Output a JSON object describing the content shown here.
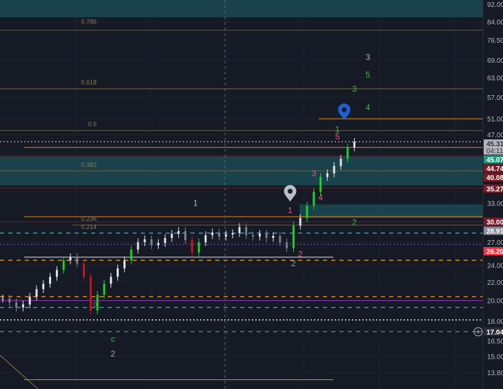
{
  "chart_data": {
    "type": "candlestick",
    "y_scale": "log",
    "grid": true,
    "ylim": [
      13.2,
      95
    ],
    "y_ticks": [
      92,
      84,
      76.5,
      69,
      63,
      57,
      51,
      47,
      33,
      27,
      24,
      22,
      20,
      18,
      16.5,
      15,
      13.8
    ],
    "y_tick_labels": [
      "92.00",
      "84.00",
      "76.50",
      "69.00",
      "63.00",
      "57.00",
      "51.00",
      "47.00",
      "33.00",
      "27.00",
      "24.00",
      "22.00",
      "20.00",
      "18.00",
      "16.50",
      "15.00",
      "13.80"
    ],
    "closes": [
      20.2,
      19.8,
      19.3,
      19.6,
      20.4,
      21.2,
      21.8,
      22.6,
      23.4,
      24.6,
      25.0,
      24.2,
      22.6,
      19.0,
      20.6,
      21.8,
      22.6,
      23.6,
      24.6,
      26.0,
      27.0,
      27.4,
      26.6,
      26.9,
      27.6,
      28.2,
      28.6,
      27.3,
      25.6,
      27.0,
      28.0,
      28.4,
      27.8,
      28.1,
      28.3,
      29.2,
      28.0,
      27.8,
      28.2,
      27.6,
      27.9,
      27.0,
      26.2,
      29.4,
      30.6,
      32.6,
      35.0,
      37.8,
      38.5,
      40.0,
      41.5,
      44.0,
      45.3
    ],
    "levels": [
      {
        "price": 80.5,
        "color": "#5d5a4e",
        "style": "solid"
      },
      {
        "price": 59.5,
        "color": "#7a6a3a",
        "style": "solid"
      },
      {
        "price": 48.0,
        "color": "#6a5d40",
        "style": "solid"
      },
      {
        "price": 51.0,
        "color": "#e08a1e",
        "style": "solid",
        "from": 0.66
      },
      {
        "price": 45.31,
        "color": "#9aa0aa",
        "style": "dotted"
      },
      {
        "price": 44.0,
        "color": "#e08a1e",
        "style": "solid",
        "from": 0.05
      },
      {
        "price": 39.0,
        "color": "#6a5d40",
        "style": "solid"
      },
      {
        "price": 42.1,
        "color": "#6b1c24",
        "style": "solid"
      },
      {
        "price": 35.7,
        "color": "#6b1c24",
        "style": "solid"
      },
      {
        "price": 30.8,
        "color": "#e08a1e",
        "style": "solid",
        "from": 0.05
      },
      {
        "price": 30.0,
        "color": "#6b1c24",
        "style": "solid"
      },
      {
        "price": 29.5,
        "color": "#6a5d40",
        "style": "solid",
        "from": 0.15
      },
      {
        "price": 28.3,
        "color": "#27a3b8",
        "style": "dashed"
      },
      {
        "price": 26.7,
        "color": "#6a3fa0",
        "style": "dotted"
      },
      {
        "price": 25.0,
        "color": "#e6e6e6",
        "style": "solid",
        "from": 0.05,
        "to": 0.69
      },
      {
        "price": 24.6,
        "color": "#e08a1e",
        "style": "dashed"
      },
      {
        "price": 20.4,
        "color": "#e08a1e",
        "style": "dashed"
      },
      {
        "price": 20.0,
        "color": "#9b30c8",
        "style": "solid"
      },
      {
        "price": 19.3,
        "color": "#27a3b8",
        "style": "dashed"
      },
      {
        "price": 18.1,
        "color": "#e6e6e6",
        "style": "dotted"
      },
      {
        "price": 17.04,
        "color": "#6b6f78",
        "style": "dashed"
      },
      {
        "price": 13.3,
        "color": "#e08a1e",
        "style": "solid",
        "from": 0.05,
        "to": 0.69
      }
    ],
    "zones": [
      {
        "top": 95,
        "bottom": 86,
        "color": "#1b4a55"
      },
      {
        "top": 42,
        "bottom": 36.2,
        "color": "#1b4a55"
      },
      {
        "top": 32.8,
        "bottom": 30.6,
        "color": "#1b4a55",
        "from": 0.62
      }
    ],
    "fib_labels": [
      {
        "text": "0.786",
        "price": 84
      },
      {
        "text": "0.618",
        "price": 61.5
      },
      {
        "text": "0.5",
        "price": 49.6
      },
      {
        "text": "0.382",
        "price": 40.2
      },
      {
        "text": "0.236",
        "price": 30.5
      },
      {
        "text": "0.214",
        "price": 29.6
      },
      {
        "text": "0",
        "price": 19.6
      }
    ],
    "wave_labels": [
      {
        "text": "3",
        "index": 54,
        "price": 70,
        "color": "#b0b4bc"
      },
      {
        "text": "5",
        "index": 54,
        "price": 64,
        "color": "#3fb34f"
      },
      {
        "text": "3",
        "index": 52,
        "price": 59.5,
        "color": "#3fb34f"
      },
      {
        "text": "4",
        "index": 54,
        "price": 54,
        "color": "#3fb34f"
      },
      {
        "text": "1",
        "index": 49.5,
        "price": 48.3,
        "color": "#3fb34f"
      },
      {
        "text": "5",
        "index": 49.5,
        "price": 46.5,
        "color": "#e05a8a"
      },
      {
        "text": "3",
        "index": 46,
        "price": 38.5,
        "color": "#e05a8a"
      },
      {
        "text": "4",
        "index": 47,
        "price": 34,
        "color": "#e05a8a"
      },
      {
        "text": "1",
        "index": 42.5,
        "price": 31.8,
        "color": "#e05a8a"
      },
      {
        "text": "2",
        "index": 52,
        "price": 29.9,
        "color": "#3fb34f"
      },
      {
        "text": "1",
        "index": 28.5,
        "price": 33,
        "color": "#b0b4bc"
      },
      {
        "text": "2",
        "index": 44,
        "price": 25.4,
        "color": "#e05a8a"
      },
      {
        "text": "2",
        "index": 43,
        "price": 24.2,
        "color": "#9aa0aa"
      },
      {
        "text": "c",
        "index": 16.3,
        "price": 16.4,
        "color": "#3fb34f"
      },
      {
        "text": "2",
        "index": 16.3,
        "price": 15.2,
        "color": "#9aa0aa"
      }
    ],
    "markers": [
      {
        "icon": "location-pin-icon",
        "index": 50.5,
        "price": 52.5,
        "color": "#1f5fd6"
      },
      {
        "icon": "location-pin-icon",
        "index": 42.5,
        "price": 34.5,
        "color": "#b8bcc4"
      }
    ],
    "price_badges": [
      {
        "text": "45.31",
        "sub": "04:11",
        "bg": "#b2b5be",
        "fg": "#30343c",
        "price": 45.2
      },
      {
        "text": "45.07",
        "bg": "#1f9a7e",
        "fg": "#ffffff",
        "price": 43.5
      },
      {
        "text": "44.74",
        "bg": "#7a1c26",
        "fg": "#ffffff",
        "price": 41.8
      },
      {
        "text": "40.08",
        "bg": "#7a1c26",
        "fg": "#ffffff",
        "price": 39.7
      },
      {
        "text": "35.27",
        "bg": "#7a1c26",
        "fg": "#ffffff",
        "price": 35.6
      },
      {
        "text": "30.00",
        "bg": "#7a1c26",
        "fg": "#ffffff",
        "price": 30.0
      },
      {
        "text": "28.91",
        "bg": "#8a8e98",
        "fg": "#ffffff",
        "price": 28.9
      },
      {
        "text": "26.20",
        "bg": "#f23645",
        "fg": "#ffffff",
        "price": 26.4
      },
      {
        "text": "17.04",
        "bg": "#2a2e39",
        "fg": "#ffffff",
        "price": 17.04
      }
    ]
  }
}
